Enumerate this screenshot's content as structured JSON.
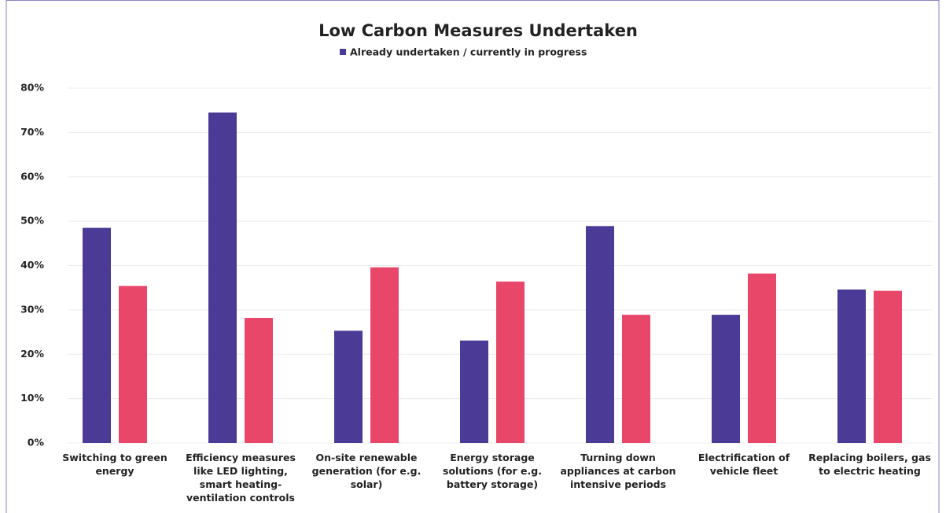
{
  "chart_data": {
    "type": "bar",
    "title": "Low Carbon Measures Undertaken",
    "categories": [
      "Switching to green energy",
      "Efficiency measures like LED lighting, smart heating-ventilation controls",
      "On-site renewable generation (for e.g. solar)",
      "Energy storage solutions (for e.g. battery storage)",
      "Turning down appliances at carbon intensive periods",
      "Electrification of vehicle fleet",
      "Replacing boilers, gas to electric heating"
    ],
    "series": [
      {
        "name": "Already undertaken / currently in progress",
        "color": "#4b3b96",
        "values": [
          48.5,
          74.5,
          25.3,
          23.1,
          48.9,
          28.9,
          34.6
        ]
      },
      {
        "color": "#e8476a",
        "values": [
          35.4,
          28.2,
          39.6,
          36.4,
          28.9,
          38.2,
          34.3
        ]
      }
    ],
    "ylim": [
      0,
      80
    ],
    "yticks": [
      {
        "value": 0,
        "label": "0%"
      },
      {
        "value": 10,
        "label": "10%"
      },
      {
        "value": 20,
        "label": "20%"
      },
      {
        "value": 30,
        "label": "30%"
      },
      {
        "value": 40,
        "label": "40%"
      },
      {
        "value": 50,
        "label": "50%"
      },
      {
        "value": 60,
        "label": "60%"
      },
      {
        "value": 70,
        "label": "70%"
      },
      {
        "value": 80,
        "label": "80%"
      }
    ],
    "grid": true
  }
}
